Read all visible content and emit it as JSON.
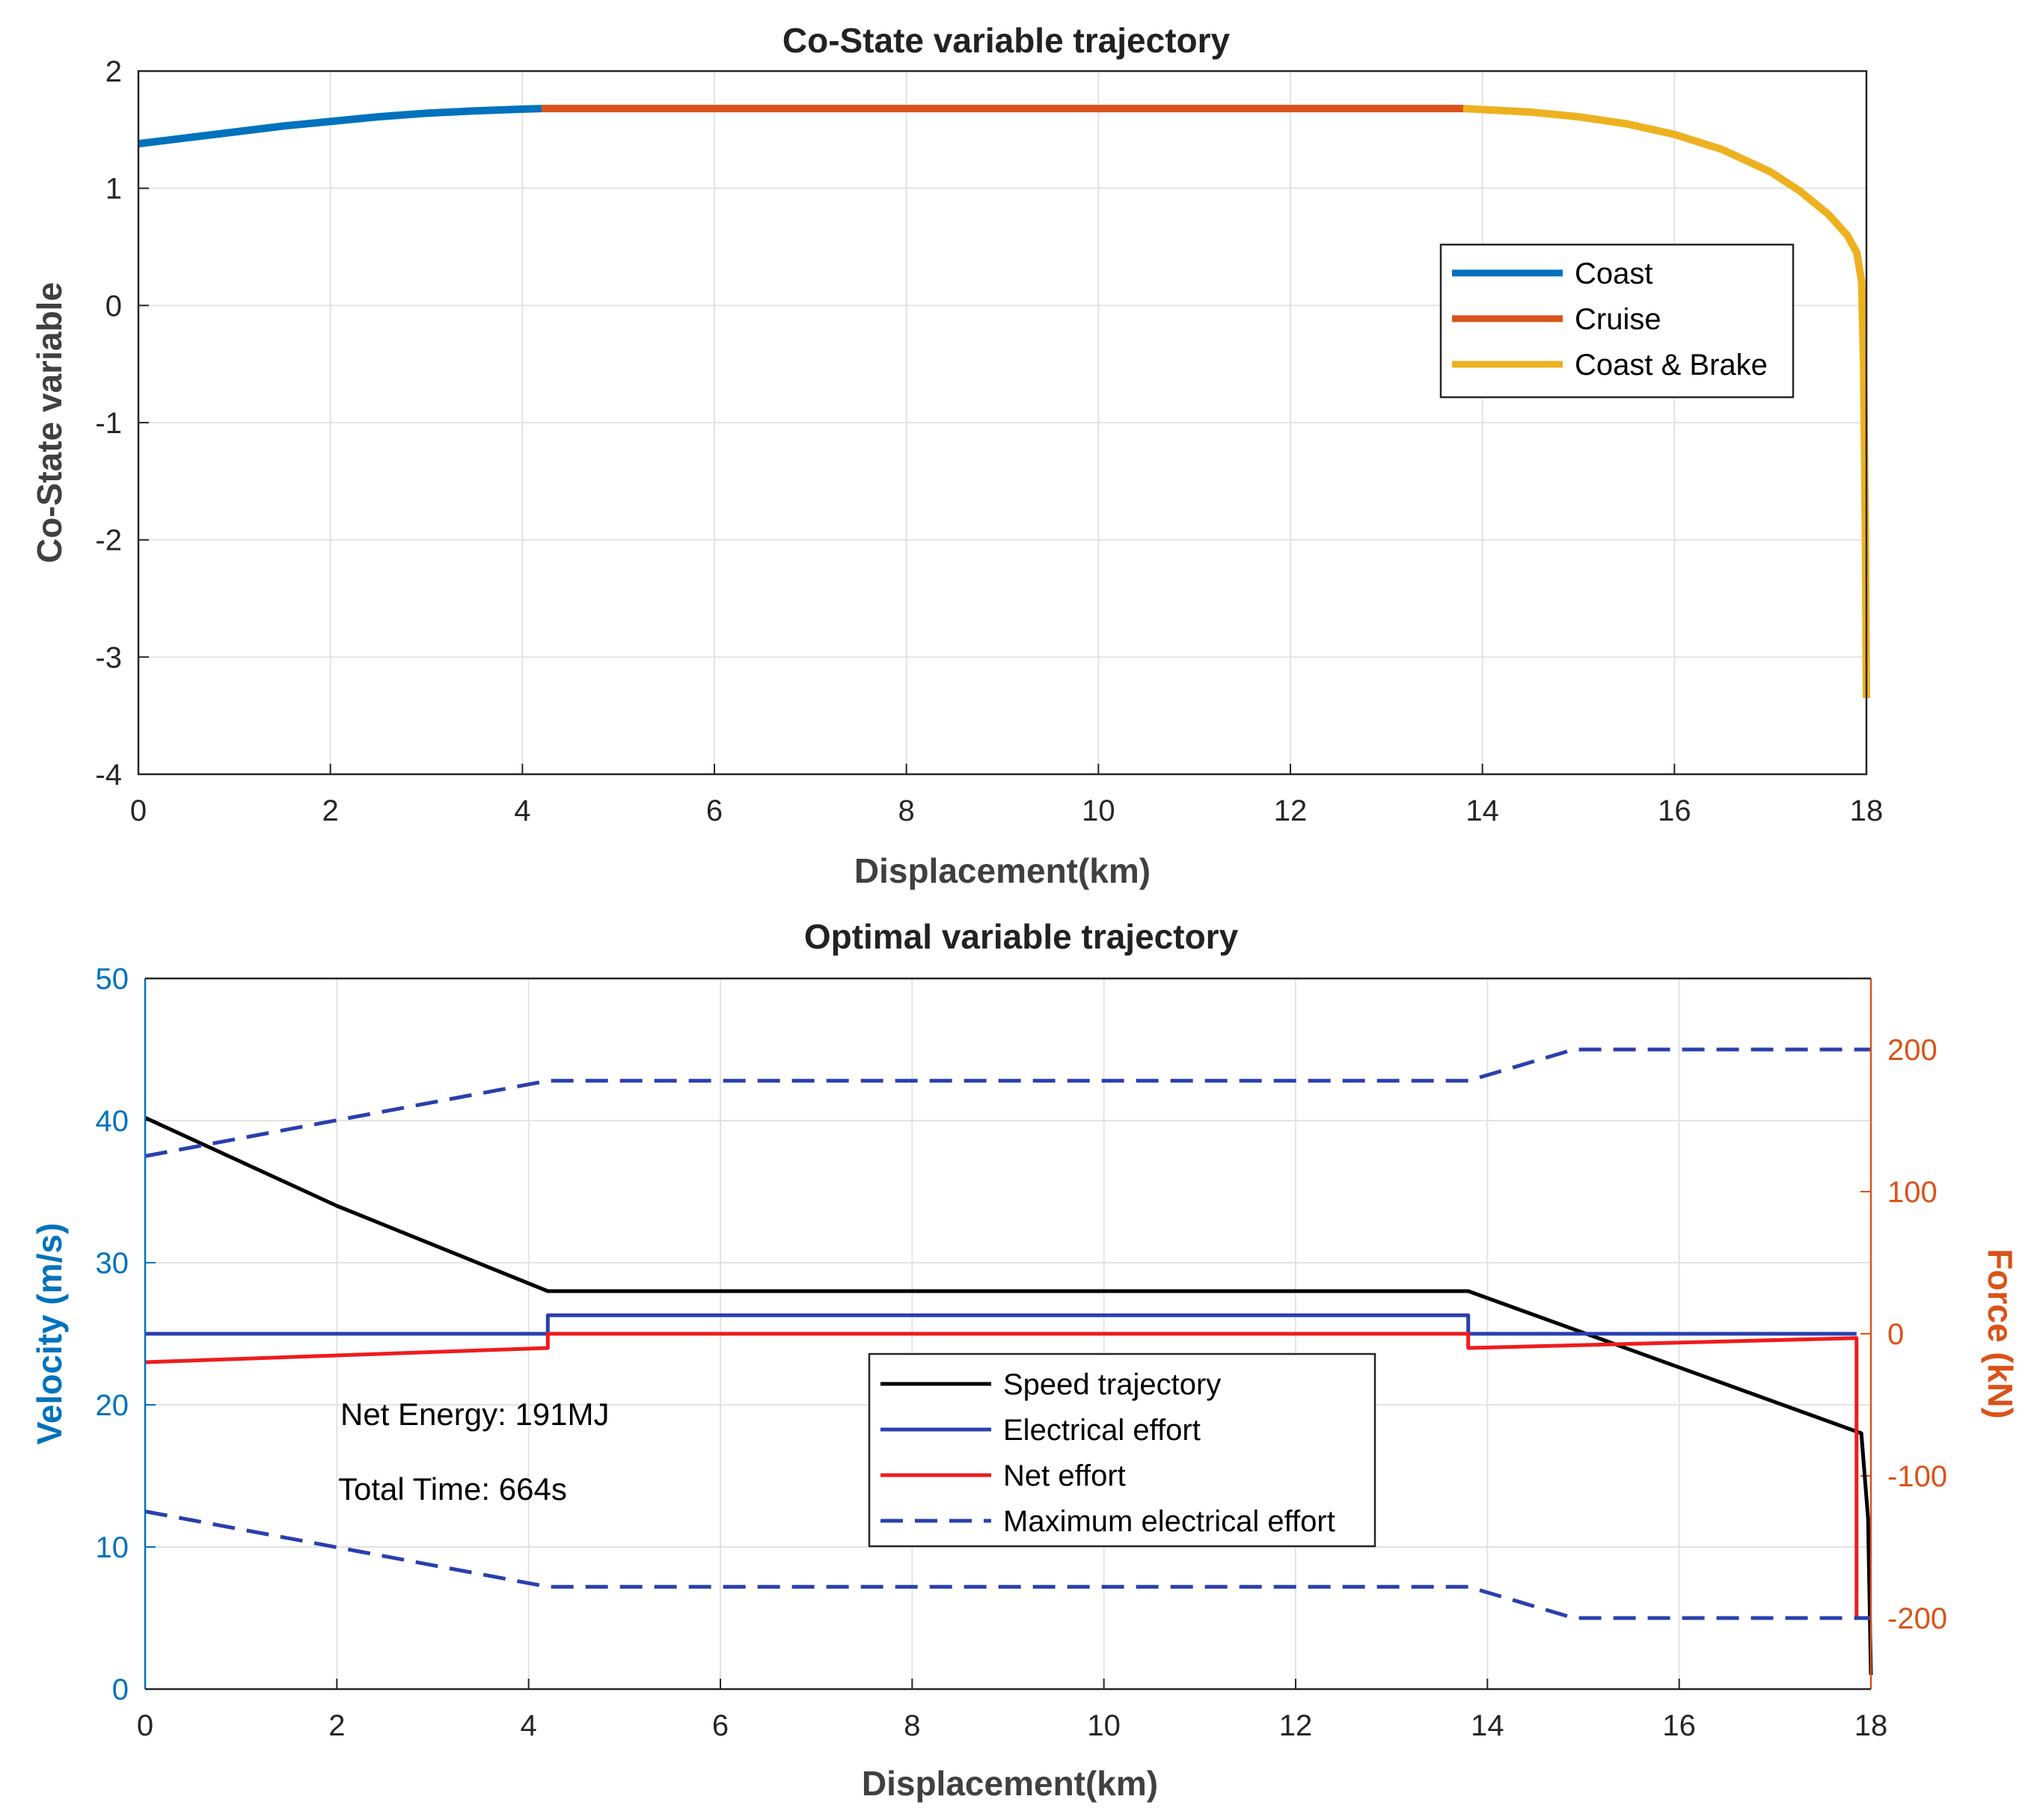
{
  "chart_data": [
    {
      "type": "line",
      "title": "Co-State variable trajectory",
      "xlabel": "Displacement(km)",
      "ylabel": "Co-State variable",
      "xlim": [
        0,
        18
      ],
      "ylim": [
        -4,
        2
      ],
      "xticks": [
        "0",
        "2",
        "4",
        "6",
        "8",
        "10",
        "12",
        "14",
        "16",
        "18"
      ],
      "yticks": [
        "2",
        "1",
        "0",
        "-1",
        "-2",
        "-3",
        "-4"
      ],
      "grid": true,
      "legend": {
        "placement": "right",
        "entries": [
          "Coast",
          "Cruise",
          "Coast & Brake"
        ]
      },
      "series": [
        {
          "name": "Coast",
          "color": "#0072BD",
          "x": [
            0,
            0.5,
            1,
            1.5,
            2,
            2.5,
            3,
            3.5,
            4,
            4.2
          ],
          "y": [
            1.38,
            1.43,
            1.48,
            1.53,
            1.57,
            1.61,
            1.64,
            1.66,
            1.675,
            1.68
          ]
        },
        {
          "name": "Cruise",
          "color": "#D95319",
          "x": [
            4.2,
            13.8
          ],
          "y": [
            1.68,
            1.68
          ]
        },
        {
          "name": "Coast & Brake",
          "color": "#EDB120",
          "x": [
            13.8,
            14.5,
            15,
            15.5,
            16,
            16.5,
            17,
            17.3,
            17.6,
            17.8,
            17.9,
            17.95,
            17.97,
            17.99,
            18.0
          ],
          "y": [
            1.68,
            1.65,
            1.61,
            1.55,
            1.46,
            1.33,
            1.14,
            0.98,
            0.78,
            0.6,
            0.45,
            0.2,
            -0.5,
            -2.0,
            -3.35
          ]
        }
      ]
    },
    {
      "type": "line",
      "title": "Optimal variable trajectory",
      "xlabel": "Displacement(km)",
      "ylabel": "Velocity (m/s)",
      "y2label": "Force (kN)",
      "xlim": [
        0,
        18
      ],
      "ylim": [
        0,
        50
      ],
      "y2lim": [
        -250,
        250
      ],
      "xticks": [
        "0",
        "2",
        "4",
        "6",
        "8",
        "10",
        "12",
        "14",
        "16",
        "18"
      ],
      "yticks": [
        "50",
        "40",
        "30",
        "20",
        "10",
        "0"
      ],
      "y2ticks": [
        "200",
        "100",
        "0",
        "-100",
        "-200"
      ],
      "grid": true,
      "legend": {
        "placement": "center",
        "entries": [
          "Speed trajectory",
          "Electrical effort",
          "Net effort",
          "Maximum electrical effort"
        ]
      },
      "annotations": [
        "Net Energy: 191MJ",
        "Total Time: 664s"
      ],
      "series": [
        {
          "name": "Speed trajectory",
          "axis": "left",
          "color": "#000000",
          "x": [
            0,
            2,
            4.2,
            13.8,
            17.9,
            17.97,
            18.0
          ],
          "y": [
            40.2,
            34.0,
            28.0,
            28.0,
            18.0,
            12.0,
            1.0
          ]
        },
        {
          "name": "Electrical effort",
          "axis": "right",
          "color": "#2A3FAE",
          "x": [
            0,
            4.2,
            4.2,
            13.8,
            13.8,
            17.85
          ],
          "y": [
            0,
            0,
            13,
            13,
            0,
            0
          ]
        },
        {
          "name": "Net effort",
          "axis": "right",
          "color": "#EE1C1C",
          "x": [
            0,
            4.2,
            4.2,
            13.8,
            13.8,
            17.85,
            17.85,
            18.0
          ],
          "y": [
            -20,
            -10,
            0,
            0,
            -10,
            -3,
            -200,
            -200
          ]
        },
        {
          "name": "Maximum electrical effort",
          "axis": "right",
          "color": "#2A3FAE",
          "dash": true,
          "x": [
            0,
            4.2,
            13.8,
            14.9,
            18.0
          ],
          "y": [
            125,
            178,
            178,
            200,
            200
          ]
        },
        {
          "name": "Maximum electrical effort (lower)",
          "axis": "right",
          "color": "#2A3FAE",
          "dash": true,
          "x": [
            0,
            4.2,
            13.8,
            14.9,
            18.0
          ],
          "y": [
            -125,
            -178,
            -178,
            -200,
            -200
          ]
        }
      ]
    }
  ]
}
